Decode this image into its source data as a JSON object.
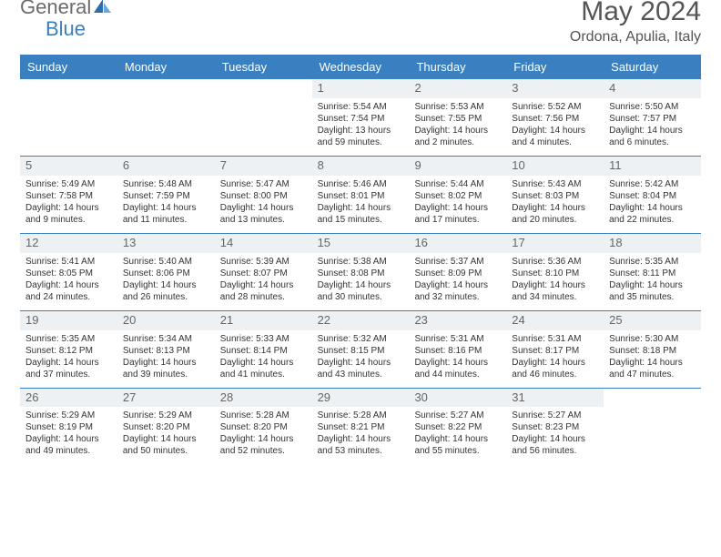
{
  "logo": {
    "part1": "General",
    "part2": "Blue"
  },
  "title": "May 2024",
  "location": "Ordona, Apulia, Italy",
  "colors": {
    "header_bg": "#3a7fbf",
    "header_text": "#ffffff",
    "daynum_bg": "#eef1f3",
    "border": "#3a7fbf",
    "text": "#333333",
    "title_text": "#555555",
    "logo_gray": "#6b6b6b",
    "logo_blue": "#3a7fbf"
  },
  "day_names": [
    "Sunday",
    "Monday",
    "Tuesday",
    "Wednesday",
    "Thursday",
    "Friday",
    "Saturday"
  ],
  "weeks": [
    [
      {
        "day": "",
        "sunrise": "",
        "sunset": "",
        "daylight": ""
      },
      {
        "day": "",
        "sunrise": "",
        "sunset": "",
        "daylight": ""
      },
      {
        "day": "",
        "sunrise": "",
        "sunset": "",
        "daylight": ""
      },
      {
        "day": "1",
        "sunrise": "Sunrise: 5:54 AM",
        "sunset": "Sunset: 7:54 PM",
        "daylight": "Daylight: 13 hours and 59 minutes."
      },
      {
        "day": "2",
        "sunrise": "Sunrise: 5:53 AM",
        "sunset": "Sunset: 7:55 PM",
        "daylight": "Daylight: 14 hours and 2 minutes."
      },
      {
        "day": "3",
        "sunrise": "Sunrise: 5:52 AM",
        "sunset": "Sunset: 7:56 PM",
        "daylight": "Daylight: 14 hours and 4 minutes."
      },
      {
        "day": "4",
        "sunrise": "Sunrise: 5:50 AM",
        "sunset": "Sunset: 7:57 PM",
        "daylight": "Daylight: 14 hours and 6 minutes."
      }
    ],
    [
      {
        "day": "5",
        "sunrise": "Sunrise: 5:49 AM",
        "sunset": "Sunset: 7:58 PM",
        "daylight": "Daylight: 14 hours and 9 minutes."
      },
      {
        "day": "6",
        "sunrise": "Sunrise: 5:48 AM",
        "sunset": "Sunset: 7:59 PM",
        "daylight": "Daylight: 14 hours and 11 minutes."
      },
      {
        "day": "7",
        "sunrise": "Sunrise: 5:47 AM",
        "sunset": "Sunset: 8:00 PM",
        "daylight": "Daylight: 14 hours and 13 minutes."
      },
      {
        "day": "8",
        "sunrise": "Sunrise: 5:46 AM",
        "sunset": "Sunset: 8:01 PM",
        "daylight": "Daylight: 14 hours and 15 minutes."
      },
      {
        "day": "9",
        "sunrise": "Sunrise: 5:44 AM",
        "sunset": "Sunset: 8:02 PM",
        "daylight": "Daylight: 14 hours and 17 minutes."
      },
      {
        "day": "10",
        "sunrise": "Sunrise: 5:43 AM",
        "sunset": "Sunset: 8:03 PM",
        "daylight": "Daylight: 14 hours and 20 minutes."
      },
      {
        "day": "11",
        "sunrise": "Sunrise: 5:42 AM",
        "sunset": "Sunset: 8:04 PM",
        "daylight": "Daylight: 14 hours and 22 minutes."
      }
    ],
    [
      {
        "day": "12",
        "sunrise": "Sunrise: 5:41 AM",
        "sunset": "Sunset: 8:05 PM",
        "daylight": "Daylight: 14 hours and 24 minutes."
      },
      {
        "day": "13",
        "sunrise": "Sunrise: 5:40 AM",
        "sunset": "Sunset: 8:06 PM",
        "daylight": "Daylight: 14 hours and 26 minutes."
      },
      {
        "day": "14",
        "sunrise": "Sunrise: 5:39 AM",
        "sunset": "Sunset: 8:07 PM",
        "daylight": "Daylight: 14 hours and 28 minutes."
      },
      {
        "day": "15",
        "sunrise": "Sunrise: 5:38 AM",
        "sunset": "Sunset: 8:08 PM",
        "daylight": "Daylight: 14 hours and 30 minutes."
      },
      {
        "day": "16",
        "sunrise": "Sunrise: 5:37 AM",
        "sunset": "Sunset: 8:09 PM",
        "daylight": "Daylight: 14 hours and 32 minutes."
      },
      {
        "day": "17",
        "sunrise": "Sunrise: 5:36 AM",
        "sunset": "Sunset: 8:10 PM",
        "daylight": "Daylight: 14 hours and 34 minutes."
      },
      {
        "day": "18",
        "sunrise": "Sunrise: 5:35 AM",
        "sunset": "Sunset: 8:11 PM",
        "daylight": "Daylight: 14 hours and 35 minutes."
      }
    ],
    [
      {
        "day": "19",
        "sunrise": "Sunrise: 5:35 AM",
        "sunset": "Sunset: 8:12 PM",
        "daylight": "Daylight: 14 hours and 37 minutes."
      },
      {
        "day": "20",
        "sunrise": "Sunrise: 5:34 AM",
        "sunset": "Sunset: 8:13 PM",
        "daylight": "Daylight: 14 hours and 39 minutes."
      },
      {
        "day": "21",
        "sunrise": "Sunrise: 5:33 AM",
        "sunset": "Sunset: 8:14 PM",
        "daylight": "Daylight: 14 hours and 41 minutes."
      },
      {
        "day": "22",
        "sunrise": "Sunrise: 5:32 AM",
        "sunset": "Sunset: 8:15 PM",
        "daylight": "Daylight: 14 hours and 43 minutes."
      },
      {
        "day": "23",
        "sunrise": "Sunrise: 5:31 AM",
        "sunset": "Sunset: 8:16 PM",
        "daylight": "Daylight: 14 hours and 44 minutes."
      },
      {
        "day": "24",
        "sunrise": "Sunrise: 5:31 AM",
        "sunset": "Sunset: 8:17 PM",
        "daylight": "Daylight: 14 hours and 46 minutes."
      },
      {
        "day": "25",
        "sunrise": "Sunrise: 5:30 AM",
        "sunset": "Sunset: 8:18 PM",
        "daylight": "Daylight: 14 hours and 47 minutes."
      }
    ],
    [
      {
        "day": "26",
        "sunrise": "Sunrise: 5:29 AM",
        "sunset": "Sunset: 8:19 PM",
        "daylight": "Daylight: 14 hours and 49 minutes."
      },
      {
        "day": "27",
        "sunrise": "Sunrise: 5:29 AM",
        "sunset": "Sunset: 8:20 PM",
        "daylight": "Daylight: 14 hours and 50 minutes."
      },
      {
        "day": "28",
        "sunrise": "Sunrise: 5:28 AM",
        "sunset": "Sunset: 8:20 PM",
        "daylight": "Daylight: 14 hours and 52 minutes."
      },
      {
        "day": "29",
        "sunrise": "Sunrise: 5:28 AM",
        "sunset": "Sunset: 8:21 PM",
        "daylight": "Daylight: 14 hours and 53 minutes."
      },
      {
        "day": "30",
        "sunrise": "Sunrise: 5:27 AM",
        "sunset": "Sunset: 8:22 PM",
        "daylight": "Daylight: 14 hours and 55 minutes."
      },
      {
        "day": "31",
        "sunrise": "Sunrise: 5:27 AM",
        "sunset": "Sunset: 8:23 PM",
        "daylight": "Daylight: 14 hours and 56 minutes."
      },
      {
        "day": "",
        "sunrise": "",
        "sunset": "",
        "daylight": ""
      }
    ]
  ]
}
